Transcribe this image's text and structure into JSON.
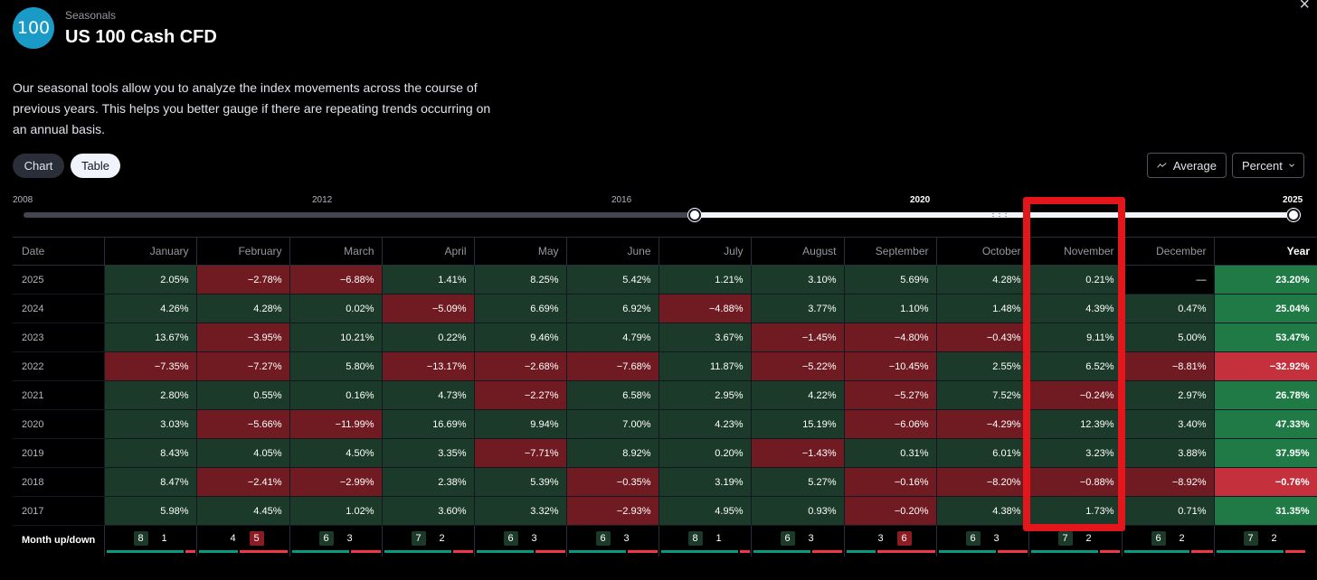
{
  "header": {
    "logo_text": "100",
    "subtitle": "Seasonals",
    "title": "US 100 Cash CFD",
    "description": "Our seasonal tools allow you to analyze the index movements across the course of previous years. This helps you better gauge if there are repeating trends occurring on an annual basis."
  },
  "view_toggle": {
    "chart_label": "Chart",
    "table_label": "Table",
    "selected": "Table"
  },
  "controls": {
    "average_label": "Average",
    "percent_label": "Percent"
  },
  "range_slider": {
    "labels": [
      "2008",
      "2012",
      "2016",
      "2020",
      "2025"
    ],
    "selected_start": 2017,
    "selected_end": 2025
  },
  "table": {
    "headers": [
      "Date",
      "January",
      "February",
      "March",
      "April",
      "May",
      "June",
      "July",
      "August",
      "September",
      "October",
      "November",
      "December",
      "Year"
    ],
    "rows": [
      {
        "date": "2025",
        "values": [
          "2.05%",
          "−2.78%",
          "−6.88%",
          "1.41%",
          "8.25%",
          "5.42%",
          "1.21%",
          "3.10%",
          "5.69%",
          "4.28%",
          "0.21%",
          "—"
        ],
        "year": "23.20%"
      },
      {
        "date": "2024",
        "values": [
          "4.26%",
          "4.28%",
          "0.02%",
          "−5.09%",
          "6.69%",
          "6.92%",
          "−4.88%",
          "3.77%",
          "1.10%",
          "1.48%",
          "4.39%",
          "0.47%"
        ],
        "year": "25.04%"
      },
      {
        "date": "2023",
        "values": [
          "13.67%",
          "−3.95%",
          "10.21%",
          "0.22%",
          "9.46%",
          "4.79%",
          "3.67%",
          "−1.45%",
          "−4.80%",
          "−0.43%",
          "9.11%",
          "5.00%"
        ],
        "year": "53.47%"
      },
      {
        "date": "2022",
        "values": [
          "−7.35%",
          "−7.27%",
          "5.80%",
          "−13.17%",
          "−2.68%",
          "−7.68%",
          "11.87%",
          "−5.22%",
          "−10.45%",
          "2.55%",
          "6.52%",
          "−8.81%"
        ],
        "year": "−32.92%"
      },
      {
        "date": "2021",
        "values": [
          "2.80%",
          "0.55%",
          "0.16%",
          "4.73%",
          "−2.27%",
          "6.58%",
          "2.95%",
          "4.22%",
          "−5.27%",
          "7.52%",
          "−0.24%",
          "2.97%"
        ],
        "year": "26.78%"
      },
      {
        "date": "2020",
        "values": [
          "3.03%",
          "−5.66%",
          "−11.99%",
          "16.69%",
          "9.94%",
          "7.00%",
          "4.23%",
          "15.19%",
          "−6.06%",
          "−4.29%",
          "12.39%",
          "3.40%"
        ],
        "year": "47.33%"
      },
      {
        "date": "2019",
        "values": [
          "8.43%",
          "4.05%",
          "4.50%",
          "3.35%",
          "−7.71%",
          "8.92%",
          "0.20%",
          "−1.43%",
          "0.31%",
          "6.01%",
          "3.23%",
          "3.88%"
        ],
        "year": "37.95%"
      },
      {
        "date": "2018",
        "values": [
          "8.47%",
          "−2.41%",
          "−2.99%",
          "2.38%",
          "5.39%",
          "−0.35%",
          "3.19%",
          "5.27%",
          "−0.16%",
          "−8.20%",
          "−0.88%",
          "−8.92%"
        ],
        "year": "−0.76%"
      },
      {
        "date": "2017",
        "values": [
          "5.98%",
          "4.45%",
          "1.02%",
          "3.60%",
          "3.32%",
          "−2.93%",
          "4.95%",
          "0.93%",
          "−0.20%",
          "4.38%",
          "1.73%",
          "0.71%"
        ],
        "year": "31.35%"
      }
    ],
    "updown_label": "Month up/down",
    "updown": [
      {
        "up": 8,
        "down": 1
      },
      {
        "up": 4,
        "down": 5
      },
      {
        "up": 6,
        "down": 3
      },
      {
        "up": 7,
        "down": 2
      },
      {
        "up": 6,
        "down": 3
      },
      {
        "up": 6,
        "down": 3
      },
      {
        "up": 8,
        "down": 1
      },
      {
        "up": 6,
        "down": 3
      },
      {
        "up": 3,
        "down": 6
      },
      {
        "up": 6,
        "down": 3
      },
      {
        "up": 7,
        "down": 2
      },
      {
        "up": 6,
        "down": 2
      },
      {
        "up": 7,
        "down": 2
      }
    ]
  },
  "colors": {
    "positive_cell": "#1c3a2a",
    "negative_cell": "#701b22",
    "year_positive": "#1f7a46",
    "year_negative": "#c4313c",
    "annotation_box": "#e3161c"
  }
}
